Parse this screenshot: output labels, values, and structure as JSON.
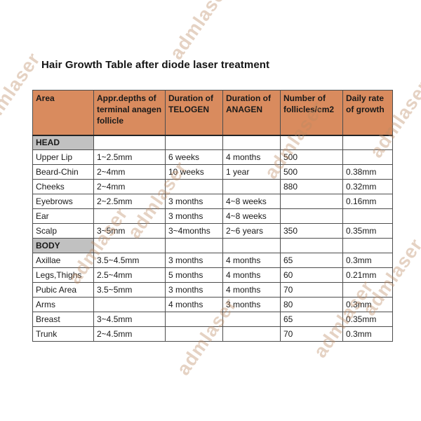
{
  "page": {
    "title": "Hair Growth Table after diode laser treatment"
  },
  "watermark": {
    "text": "admlaser"
  },
  "colors": {
    "header_bg": "#d98b5e",
    "section_bg": "#c1c1c1",
    "border": "#4d4d4d",
    "header_separator": "#242424",
    "text": "#1a1a1a",
    "watermark": "#e5d3c3"
  },
  "table": {
    "columns": [
      "Area",
      "Appr.depths of terminal anagen follicle",
      "Duration of TELOGEN",
      "Duration of ANAGEN",
      "Number of follicles/cm2",
      "Daily rate of growth"
    ],
    "rows": [
      {
        "type": "section",
        "cells": [
          "HEAD",
          "",
          "",
          "",
          "",
          ""
        ]
      },
      {
        "type": "data",
        "cells": [
          "Upper Lip",
          "1~2.5mm",
          "6 weeks",
          "4 months",
          "500",
          ""
        ]
      },
      {
        "type": "data",
        "cells": [
          "Beard-Chin",
          "2~4mm",
          "10 weeks",
          "1 year",
          "500",
          "0.38mm"
        ]
      },
      {
        "type": "data",
        "cells": [
          "Cheeks",
          "2~4mm",
          "",
          "",
          "880",
          "0.32mm"
        ]
      },
      {
        "type": "data",
        "cells": [
          "Eyebrows",
          "2~2.5mm",
          "3 months",
          "4~8 weeks",
          "",
          "0.16mm"
        ]
      },
      {
        "type": "data",
        "cells": [
          "Ear",
          "",
          "3 months",
          "4~8 weeks",
          "",
          ""
        ]
      },
      {
        "type": "data",
        "cells": [
          "Scalp",
          "3~5mm",
          "3~4months",
          "2~6 years",
          "350",
          "0.35mm"
        ]
      },
      {
        "type": "section",
        "cells": [
          "BODY",
          "",
          "",
          "",
          "",
          ""
        ]
      },
      {
        "type": "data",
        "cells": [
          "Axillae",
          "3.5~4.5mm",
          "3 months",
          "4 months",
          "65",
          "0.3mm"
        ]
      },
      {
        "type": "data",
        "cells": [
          "Legs,Thighs",
          "2.5~4mm",
          "5 months",
          "4 months",
          "60",
          "0.21mm"
        ]
      },
      {
        "type": "data",
        "cells": [
          "Pubic Area",
          "3.5~5mm",
          "3 months",
          "4 months",
          "70",
          ""
        ]
      },
      {
        "type": "data",
        "cells": [
          "Arms",
          "",
          "4 months",
          "3 months",
          "80",
          "0.3mm"
        ]
      },
      {
        "type": "data",
        "cells": [
          "Breast",
          "3~4.5mm",
          "",
          "",
          "65",
          "0.35mm"
        ]
      },
      {
        "type": "data",
        "cells": [
          "Trunk",
          "2~4.5mm",
          "",
          "",
          "70",
          "0.3mm"
        ]
      }
    ]
  }
}
